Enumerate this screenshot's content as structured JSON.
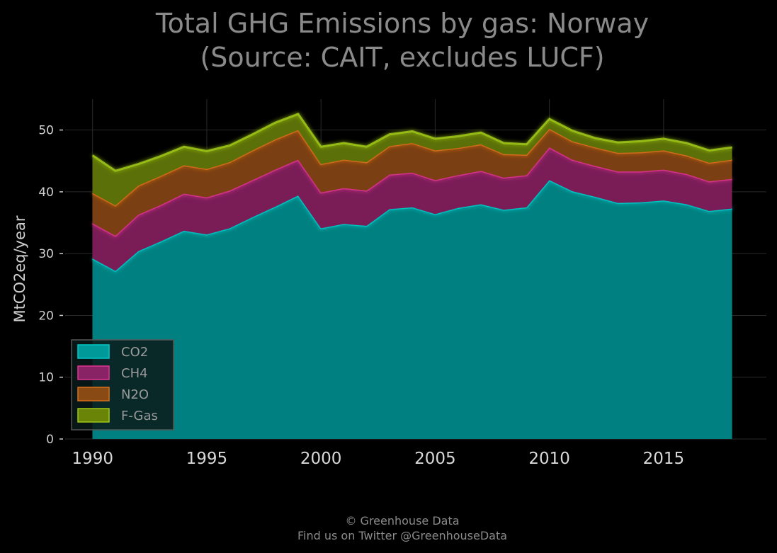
{
  "chart_data": {
    "type": "area",
    "stacked": true,
    "title_lines": [
      "Total GHG Emissions by gas: Norway",
      "(Source: CAIT, excludes LUCF)"
    ],
    "xlabel": "",
    "ylabel": "MtCO2eq/year",
    "xlim": [
      1988.8,
      2019.5
    ],
    "ylim": [
      0,
      55
    ],
    "x_ticks": [
      1990,
      1995,
      2000,
      2005,
      2010,
      2015
    ],
    "y_ticks": [
      0,
      10,
      20,
      30,
      40,
      50
    ],
    "grid": true,
    "legend_position": "lower-left",
    "x": [
      1990,
      1991,
      1992,
      1993,
      1994,
      1995,
      1996,
      1997,
      1998,
      1999,
      2000,
      2001,
      2002,
      2003,
      2004,
      2005,
      2006,
      2007,
      2008,
      2009,
      2010,
      2011,
      2012,
      2013,
      2014,
      2015,
      2016,
      2017,
      2018
    ],
    "series": [
      {
        "name": "CO2",
        "color": "#00c8c8",
        "values": [
          29.2,
          27.2,
          30.4,
          32.0,
          33.7,
          33.1,
          34.1,
          35.9,
          37.6,
          39.4,
          34.1,
          34.8,
          34.5,
          37.2,
          37.5,
          36.4,
          37.4,
          38.0,
          37.1,
          37.5,
          41.9,
          40.1,
          39.2,
          38.2,
          38.3,
          38.6,
          38.0,
          36.9,
          37.3
        ]
      },
      {
        "name": "CH4",
        "color": "#e0358f",
        "values": [
          5.7,
          5.7,
          5.9,
          5.9,
          6.0,
          6.0,
          6.1,
          6.0,
          6.0,
          5.8,
          5.8,
          5.8,
          5.7,
          5.6,
          5.6,
          5.5,
          5.3,
          5.4,
          5.2,
          5.2,
          5.3,
          5.1,
          5.0,
          5.1,
          5.0,
          5.0,
          4.9,
          4.8,
          4.8
        ]
      },
      {
        "name": "N2O",
        "color": "#d9701a",
        "values": [
          4.9,
          4.9,
          4.7,
          4.7,
          4.6,
          4.6,
          4.6,
          4.8,
          4.9,
          4.8,
          4.6,
          4.6,
          4.6,
          4.6,
          4.8,
          4.8,
          4.4,
          4.3,
          3.8,
          3.3,
          3.0,
          3.0,
          3.0,
          3.0,
          3.1,
          3.1,
          3.0,
          3.0,
          3.1
        ]
      },
      {
        "name": "F-Gas",
        "color": "#a0c814",
        "values": [
          6.1,
          5.6,
          3.5,
          3.2,
          3.0,
          2.9,
          2.7,
          2.6,
          2.7,
          2.6,
          2.8,
          2.7,
          2.5,
          1.9,
          1.9,
          1.9,
          1.9,
          1.9,
          1.8,
          1.7,
          1.6,
          1.7,
          1.5,
          1.7,
          1.8,
          1.9,
          2.0,
          2.0,
          2.0
        ]
      }
    ]
  },
  "footer": {
    "line1": "© Greenhouse Data",
    "line2": "Find us on Twitter @GreenhouseData"
  }
}
